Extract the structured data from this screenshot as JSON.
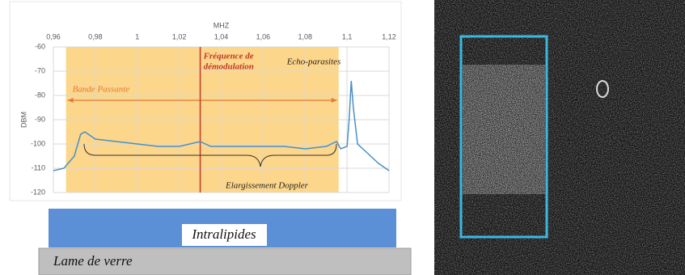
{
  "chart_data": {
    "type": "line",
    "x_label": "MHZ",
    "y_label": "DBM",
    "x": [
      0.96,
      0.965,
      0.97,
      0.973,
      0.975,
      0.98,
      0.99,
      1.0,
      1.01,
      1.02,
      1.03,
      1.035,
      1.05,
      1.06,
      1.07,
      1.08,
      1.09,
      1.095,
      1.097,
      1.1,
      1.101,
      1.102,
      1.103,
      1.105,
      1.11,
      1.115,
      1.12
    ],
    "values": [
      -111,
      -110,
      -105,
      -96,
      -95,
      -98,
      -99,
      -100,
      -101,
      -101,
      -99,
      -101,
      -101,
      -101,
      -101,
      -102,
      -101,
      -99,
      -102,
      -101,
      -90,
      -74,
      -85,
      -100,
      -104,
      -108,
      -111
    ],
    "color": "#4a8fc4",
    "xlim": [
      0.96,
      1.12
    ],
    "xticks": [
      {
        "value": 0.96,
        "label": "0,96"
      },
      {
        "value": 0.98,
        "label": "0,98"
      },
      1,
      {
        "value": 1.02,
        "label": "1,02"
      },
      {
        "value": 1.04,
        "label": "1,04"
      },
      {
        "value": 1.06,
        "label": "1,06"
      },
      {
        "value": 1.08,
        "label": "1,08"
      },
      {
        "value": 1.1,
        "label": "1,1"
      },
      {
        "value": 1.12,
        "label": "1,12"
      }
    ],
    "ylim": [
      -120,
      -60
    ],
    "yticks": [
      -60,
      -70,
      -80,
      -90,
      -100,
      -110,
      -120
    ],
    "grid": true,
    "band": {
      "xlim": [
        0.966,
        1.096
      ],
      "color": "#fcd68a",
      "label": "Bande Passante"
    },
    "marker_line": {
      "x": 1.03,
      "color": "#c0392b",
      "label": [
        "Fréquence de",
        "démodulation"
      ]
    },
    "annotations": [
      "Echo-parasites",
      "Elargissement Doppler"
    ]
  },
  "diagram": {
    "layer_top": "Intralipides",
    "layer_bottom": "Lame de verre"
  }
}
